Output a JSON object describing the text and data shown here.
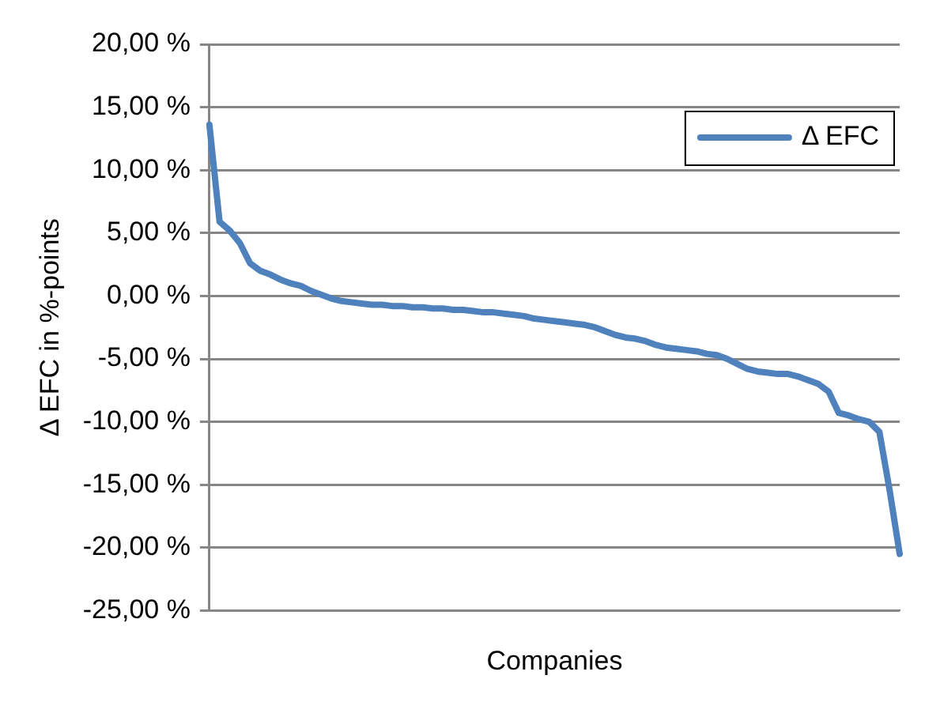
{
  "chart_data": {
    "type": "line",
    "xlabel": "Companies",
    "ylabel": "Δ EFC in %-points",
    "categories": [
      null,
      null,
      null,
      null,
      null,
      null,
      null,
      null,
      null,
      null,
      null,
      null,
      null,
      null,
      null,
      null,
      null,
      null,
      null,
      null,
      null,
      null,
      null,
      null,
      null,
      null,
      null,
      null,
      null,
      null,
      null,
      null,
      null,
      null,
      null,
      null,
      null,
      null,
      null,
      null,
      null,
      null,
      null,
      null,
      null,
      null,
      null,
      null,
      null,
      null,
      null,
      null,
      null,
      null,
      null,
      null,
      null,
      null,
      null,
      null,
      null,
      null,
      null,
      null,
      null,
      null,
      null,
      null,
      null
    ],
    "series": [
      {
        "name": "Δ EFC",
        "color": "#4f81bd",
        "values": [
          13.6,
          5.9,
          5.2,
          4.2,
          2.6,
          2.0,
          1.7,
          1.3,
          1.0,
          0.8,
          0.4,
          0.1,
          -0.2,
          -0.4,
          -0.5,
          -0.6,
          -0.7,
          -0.7,
          -0.8,
          -0.8,
          -0.9,
          -0.9,
          -1.0,
          -1.0,
          -1.1,
          -1.1,
          -1.2,
          -1.3,
          -1.3,
          -1.4,
          -1.5,
          -1.6,
          -1.8,
          -1.9,
          -2.0,
          -2.1,
          -2.2,
          -2.3,
          -2.5,
          -2.8,
          -3.1,
          -3.3,
          -3.4,
          -3.6,
          -3.9,
          -4.1,
          -4.2,
          -4.3,
          -4.4,
          -4.6,
          -4.7,
          -5.0,
          -5.4,
          -5.8,
          -6.0,
          -6.1,
          -6.2,
          -6.2,
          -6.4,
          -6.7,
          -7.0,
          -7.6,
          -9.3,
          -9.5,
          -9.8,
          -10.0,
          -10.8,
          -15.4,
          -20.5
        ]
      }
    ],
    "ylim": [
      -25,
      20
    ],
    "yticks": [
      {
        "value": 20,
        "label": "20,00 %"
      },
      {
        "value": 15,
        "label": "15,00 %"
      },
      {
        "value": 10,
        "label": "10,00 %"
      },
      {
        "value": 5,
        "label": "5,00 %"
      },
      {
        "value": 0,
        "label": "0,00 %"
      },
      {
        "value": -5,
        "label": "-5,00 %"
      },
      {
        "value": -10,
        "label": "-10,00 %"
      },
      {
        "value": -15,
        "label": "-15,00 %"
      },
      {
        "value": -20,
        "label": "-20,00 %"
      },
      {
        "value": -25,
        "label": "-25,00 %"
      }
    ],
    "grid": "y",
    "legend": "top right",
    "marker": "none",
    "line_style": "solid"
  }
}
